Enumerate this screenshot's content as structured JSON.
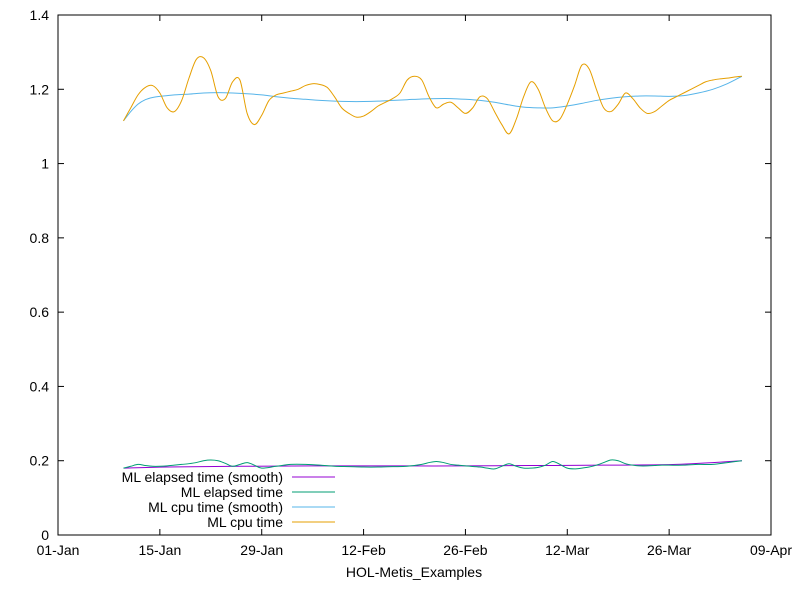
{
  "chart_data": {
    "type": "line",
    "title": "",
    "xlabel": "HOL-Metis_Examples",
    "ylabel": "",
    "x_range": [
      "2023-01-01",
      "2023-04-09"
    ],
    "xlim_days": [
      0,
      98
    ],
    "ylim": [
      0,
      1.4
    ],
    "y_ticks": [
      0,
      0.2,
      0.4,
      0.6,
      0.8,
      1,
      1.2,
      1.4
    ],
    "y_tick_labels": [
      "0",
      "0.2",
      "0.4",
      "0.6",
      "0.8",
      "1",
      "1.2",
      "1.4"
    ],
    "x_tick_labels": [
      "01-Jan",
      "15-Jan",
      "29-Jan",
      "12-Feb",
      "26-Feb",
      "12-Mar",
      "26-Mar",
      "09-Apr"
    ],
    "x_tick_days": [
      0,
      14,
      28,
      42,
      56,
      70,
      84,
      98
    ],
    "grid": false,
    "legend_position": "bottom-left",
    "series": [
      {
        "name": "ML elapsed time (smooth)",
        "color": "#9400d3",
        "x": [
          9,
          15,
          25,
          35,
          45,
          55,
          65,
          75,
          85,
          94
        ],
        "y": [
          0.18,
          0.183,
          0.185,
          0.186,
          0.186,
          0.186,
          0.187,
          0.188,
          0.19,
          0.2
        ]
      },
      {
        "name": "ML elapsed time",
        "color": "#009e73",
        "x": [
          9,
          10,
          11,
          12,
          13,
          14,
          15,
          16,
          17,
          18,
          19,
          20,
          21,
          22,
          23,
          24,
          25,
          26,
          27,
          28,
          30,
          32,
          34,
          36,
          38,
          40,
          42,
          44,
          46,
          48,
          50,
          51,
          52,
          53,
          54,
          55,
          56,
          58,
          59,
          60,
          61,
          62,
          63,
          64,
          65,
          66,
          67,
          68,
          69,
          70,
          71,
          72,
          73,
          74,
          75,
          76,
          77,
          78,
          79,
          80,
          81,
          82,
          83,
          84,
          86,
          88,
          90,
          92,
          94
        ],
        "y": [
          0.18,
          0.185,
          0.19,
          0.187,
          0.185,
          0.185,
          0.186,
          0.188,
          0.19,
          0.192,
          0.195,
          0.2,
          0.202,
          0.2,
          0.193,
          0.185,
          0.19,
          0.195,
          0.188,
          0.18,
          0.185,
          0.19,
          0.19,
          0.188,
          0.185,
          0.184,
          0.183,
          0.183,
          0.184,
          0.185,
          0.19,
          0.195,
          0.198,
          0.195,
          0.19,
          0.188,
          0.186,
          0.183,
          0.18,
          0.178,
          0.185,
          0.192,
          0.185,
          0.18,
          0.18,
          0.182,
          0.188,
          0.198,
          0.19,
          0.18,
          0.178,
          0.18,
          0.183,
          0.188,
          0.195,
          0.202,
          0.2,
          0.192,
          0.188,
          0.186,
          0.186,
          0.187,
          0.188,
          0.188,
          0.188,
          0.19,
          0.19,
          0.195,
          0.2
        ]
      },
      {
        "name": "ML cpu time (smooth)",
        "color": "#56b4e9",
        "x": [
          9,
          10,
          11,
          12,
          13,
          14,
          15,
          16,
          18,
          20,
          22,
          24,
          26,
          28,
          30,
          32,
          34,
          36,
          38,
          40,
          42,
          44,
          46,
          48,
          50,
          52,
          54,
          56,
          58,
          60,
          62,
          64,
          66,
          68,
          70,
          72,
          74,
          76,
          78,
          80,
          82,
          84,
          86,
          88,
          90,
          92,
          94
        ],
        "y": [
          1.115,
          1.14,
          1.16,
          1.172,
          1.178,
          1.181,
          1.183,
          1.185,
          1.187,
          1.19,
          1.191,
          1.19,
          1.188,
          1.185,
          1.18,
          1.176,
          1.173,
          1.17,
          1.168,
          1.167,
          1.167,
          1.168,
          1.17,
          1.172,
          1.174,
          1.175,
          1.175,
          1.173,
          1.17,
          1.165,
          1.158,
          1.152,
          1.15,
          1.15,
          1.155,
          1.162,
          1.17,
          1.176,
          1.18,
          1.182,
          1.182,
          1.181,
          1.183,
          1.19,
          1.2,
          1.215,
          1.235
        ]
      },
      {
        "name": "ML cpu time",
        "color": "#e69f00",
        "x": [
          9,
          10,
          11,
          12,
          13,
          14,
          15,
          16,
          17,
          18,
          19,
          20,
          21,
          22,
          23,
          24,
          25,
          26,
          27,
          28,
          29,
          30,
          31,
          32,
          33,
          34,
          35,
          36,
          37,
          38,
          39,
          40,
          41,
          42,
          43,
          44,
          45,
          46,
          47,
          48,
          49,
          50,
          51,
          52,
          53,
          54,
          55,
          56,
          57,
          58,
          59,
          60,
          61,
          62,
          63,
          64,
          65,
          66,
          67,
          68,
          69,
          70,
          71,
          72,
          73,
          74,
          75,
          76,
          77,
          78,
          79,
          80,
          81,
          82,
          83,
          84,
          85,
          86,
          87,
          88,
          89,
          90,
          91,
          92,
          93,
          94
        ],
        "y": [
          1.115,
          1.15,
          1.185,
          1.205,
          1.21,
          1.19,
          1.15,
          1.14,
          1.17,
          1.23,
          1.28,
          1.285,
          1.25,
          1.18,
          1.175,
          1.22,
          1.225,
          1.135,
          1.105,
          1.13,
          1.17,
          1.185,
          1.19,
          1.195,
          1.2,
          1.21,
          1.215,
          1.213,
          1.205,
          1.18,
          1.15,
          1.135,
          1.125,
          1.128,
          1.14,
          1.155,
          1.165,
          1.175,
          1.19,
          1.225,
          1.235,
          1.225,
          1.18,
          1.15,
          1.16,
          1.165,
          1.15,
          1.135,
          1.15,
          1.18,
          1.175,
          1.14,
          1.105,
          1.08,
          1.12,
          1.18,
          1.22,
          1.2,
          1.15,
          1.115,
          1.12,
          1.16,
          1.21,
          1.265,
          1.255,
          1.2,
          1.15,
          1.14,
          1.16,
          1.19,
          1.175,
          1.15,
          1.135,
          1.14,
          1.155,
          1.17,
          1.18,
          1.19,
          1.2,
          1.21,
          1.22,
          1.225,
          1.228,
          1.23,
          1.233,
          1.235
        ]
      }
    ]
  }
}
